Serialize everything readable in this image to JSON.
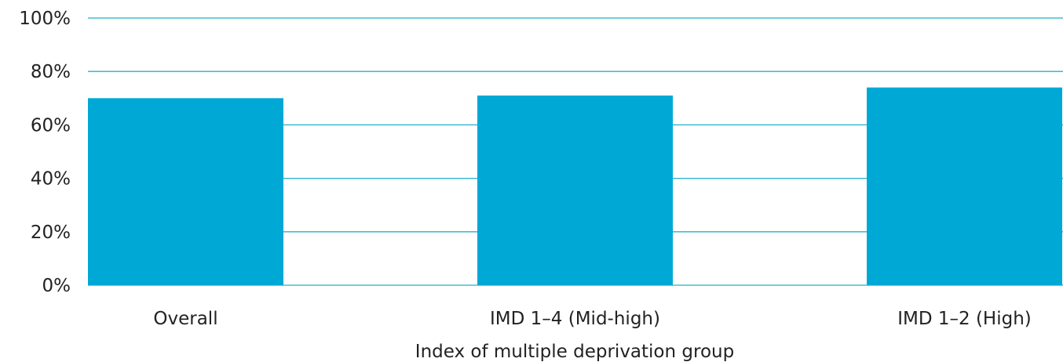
{
  "chart_data": {
    "type": "bar",
    "title": "",
    "xlabel": "Index of multiple deprivation group",
    "ylabel": "",
    "categories": [
      "Overall",
      "IMD 1–4 (Mid-high)",
      "IMD 1–2 (High)"
    ],
    "values": [
      70,
      71,
      74
    ],
    "ylim": [
      0,
      100
    ],
    "yticks": [
      0,
      20,
      40,
      60,
      80,
      100
    ],
    "ytick_labels": [
      "0%",
      "20%",
      "40%",
      "60%",
      "80%",
      "100%"
    ],
    "grid": true,
    "legend": "none"
  },
  "colors": {
    "bar": "#00a8d6",
    "gridline": "#22b2c8",
    "text": "#222222"
  }
}
